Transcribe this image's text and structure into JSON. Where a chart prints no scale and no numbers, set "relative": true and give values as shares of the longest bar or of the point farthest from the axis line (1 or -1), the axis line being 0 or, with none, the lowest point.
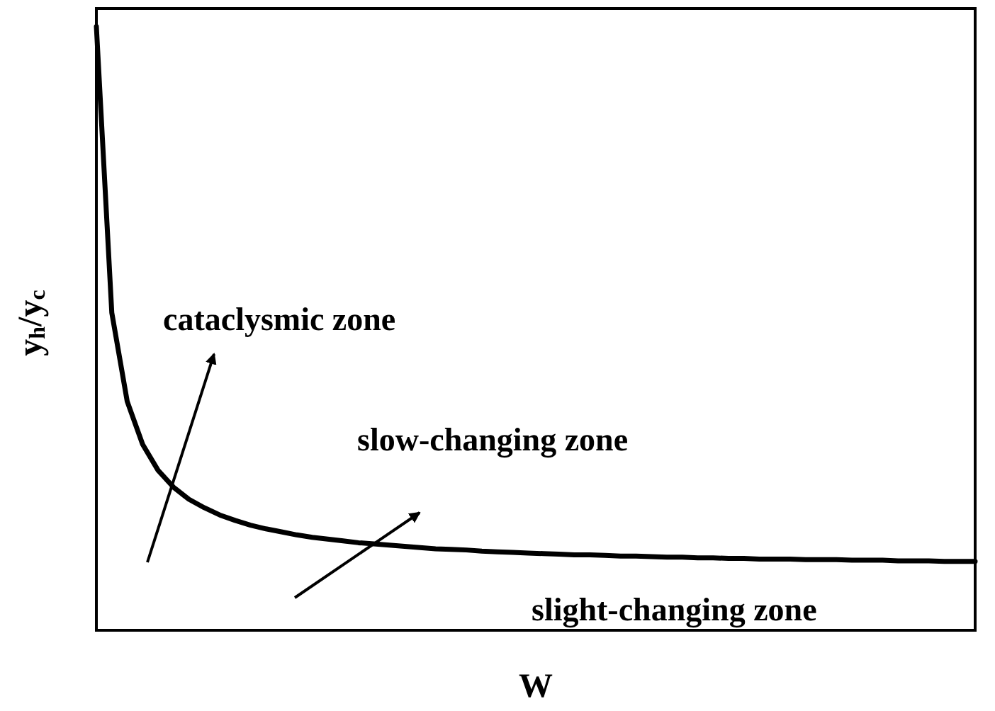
{
  "chart_data": {
    "type": "line",
    "relative": true,
    "xlabel": "W",
    "ylabel": "y$_{h}$/y$_{c}$",
    "categories": [
      null,
      null,
      null,
      null,
      null,
      null,
      null,
      null,
      null,
      null,
      null,
      null,
      null,
      null,
      null,
      null,
      null,
      null,
      null,
      null,
      null,
      null,
      null,
      null,
      null,
      null,
      null,
      null,
      null,
      null,
      null,
      null,
      null,
      null,
      null,
      null,
      null,
      null,
      null,
      null,
      null,
      null,
      null,
      null,
      null,
      null,
      null,
      null,
      null,
      null,
      null,
      null,
      null,
      null,
      null,
      null,
      null,
      null
    ],
    "values": [
      1.0,
      0.526,
      0.379,
      0.308,
      0.265,
      0.237,
      0.217,
      0.203,
      0.191,
      0.182,
      0.174,
      0.168,
      0.163,
      0.158,
      0.154,
      0.151,
      0.148,
      0.145,
      0.143,
      0.141,
      0.139,
      0.137,
      0.135,
      0.134,
      0.133,
      0.131,
      0.13,
      0.129,
      0.128,
      0.127,
      0.126,
      0.125,
      0.125,
      0.124,
      0.123,
      0.123,
      0.122,
      0.121,
      0.121,
      0.12,
      0.12,
      0.119,
      0.119,
      0.118,
      0.118,
      0.118,
      0.117,
      0.117,
      0.117,
      0.116,
      0.116,
      0.116,
      0.115,
      0.115,
      0.115,
      0.114,
      0.114,
      0.114
    ],
    "color": "#000000",
    "marker": "none",
    "line_style": "solid",
    "annotations": [
      "cataclysmic zone",
      "slow-changing zone",
      "slight-changing zone"
    ]
  }
}
